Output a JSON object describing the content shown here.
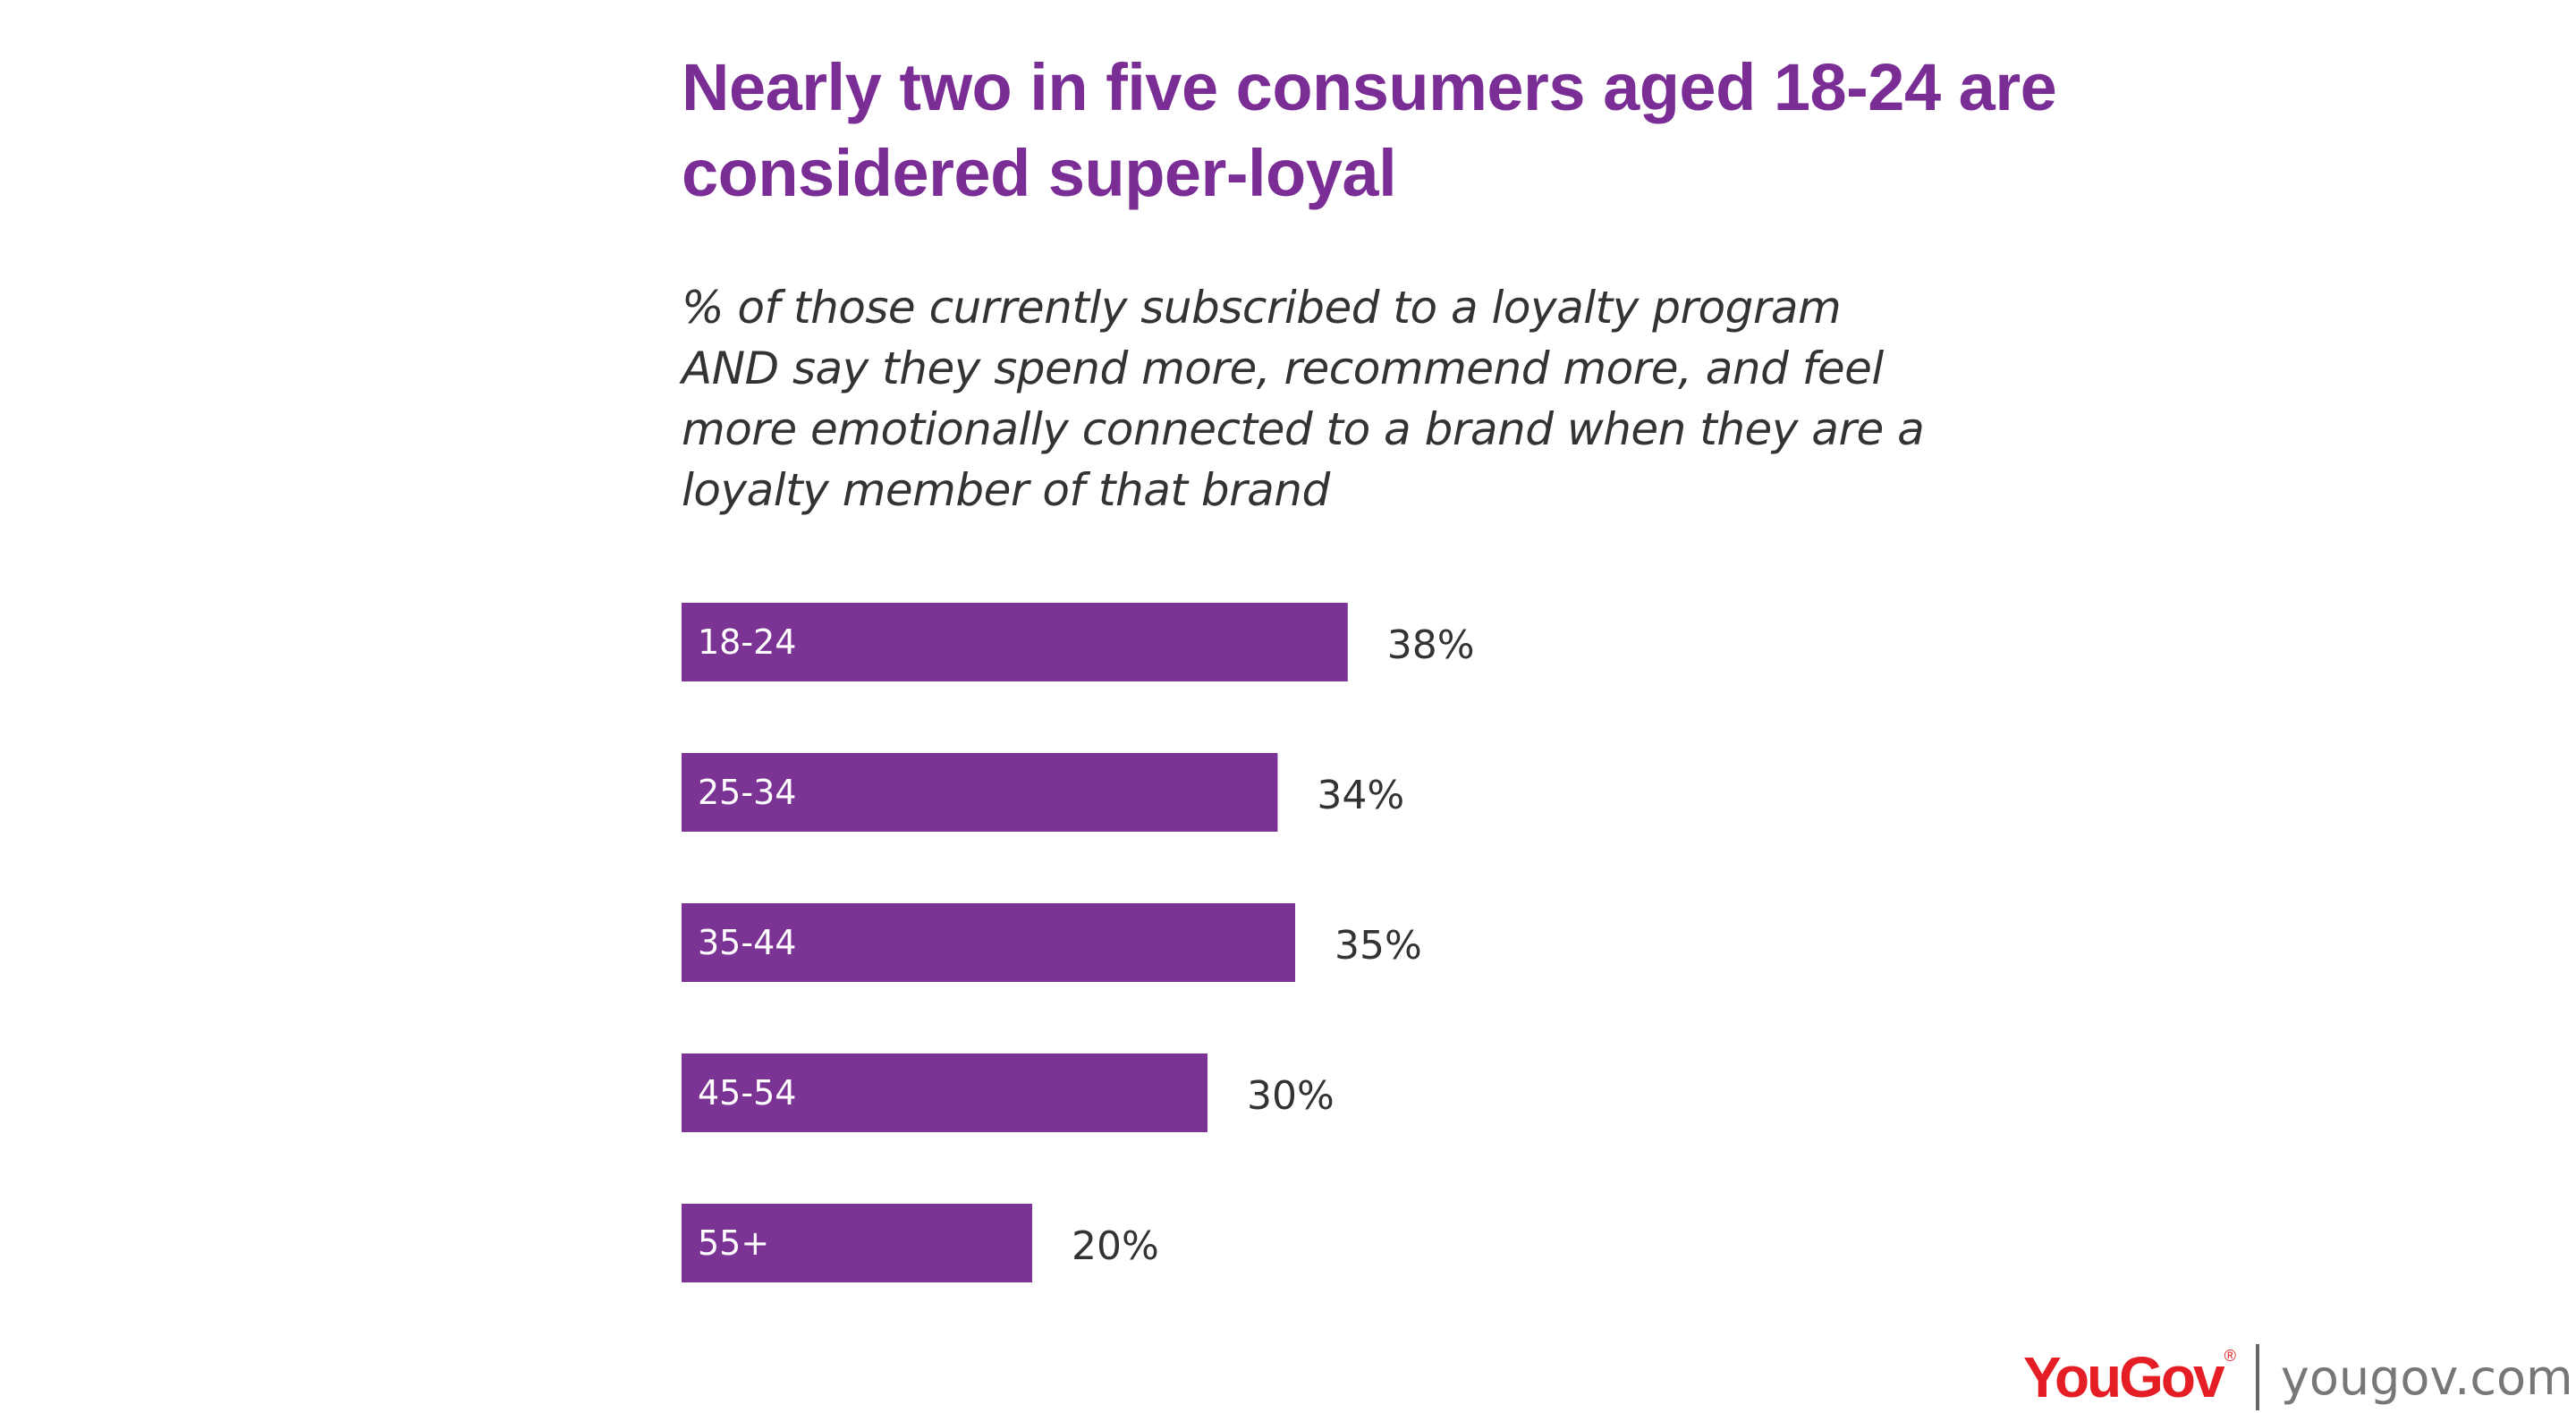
{
  "chart_data": {
    "type": "bar",
    "orientation": "horizontal",
    "title": "Nearly two in five consumers aged 18-24 are considered super-loyal",
    "subtitle": "% of those currently subscribed to a loyalty program AND say they spend more, recommend more, and feel more emotionally connected to a brand when they are a loyalty member of that brand",
    "categories": [
      "18-24",
      "25-34",
      "35-44",
      "45-54",
      "55+"
    ],
    "values": [
      38,
      34,
      35,
      30,
      20
    ],
    "value_labels": [
      "38%",
      "34%",
      "35%",
      "30%",
      "20%"
    ],
    "unit": "%",
    "xlim": [
      0,
      100
    ],
    "grid": false,
    "legend": "none",
    "bar_color": "#7b3494"
  },
  "branding": {
    "logo_text": "YouGov",
    "logo_mark": "®",
    "url": "yougov.com",
    "logo_color": "#e41e24"
  }
}
